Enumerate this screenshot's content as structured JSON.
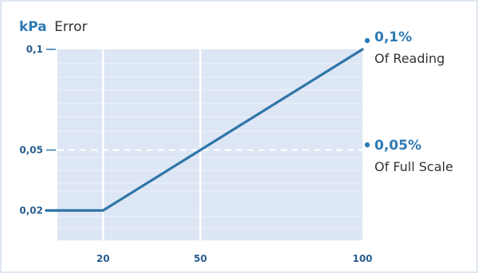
{
  "chart_data": {
    "type": "line",
    "title": "",
    "ylabel_unit": "kPa",
    "ylabel": "Error",
    "xlabel": "",
    "xlim": [
      0,
      100
    ],
    "ylim": [
      0,
      0.1
    ],
    "x_ticks": [
      "20",
      "50",
      "100"
    ],
    "y_ticks": [
      "0,1",
      "0,05",
      "0,02"
    ],
    "grid": true,
    "series": [
      {
        "x": [
          0,
          20,
          50,
          100
        ],
        "y": [
          0.02,
          0.02,
          0.05,
          0.1
        ]
      }
    ],
    "reference_line": {
      "y": 0.05,
      "style": "dashed"
    },
    "annotations": [
      {
        "value": "0,1%",
        "label": "Of Reading"
      },
      {
        "value": "0,05%",
        "label": "Of Full Scale"
      }
    ]
  },
  "colors": {
    "accent": "#2e7bb5",
    "line": "#2f75a8",
    "plot_bg": "#dde6f4",
    "frame": "#dfe6f1",
    "tick_label": "#2a5f8f",
    "text": "#333333"
  }
}
